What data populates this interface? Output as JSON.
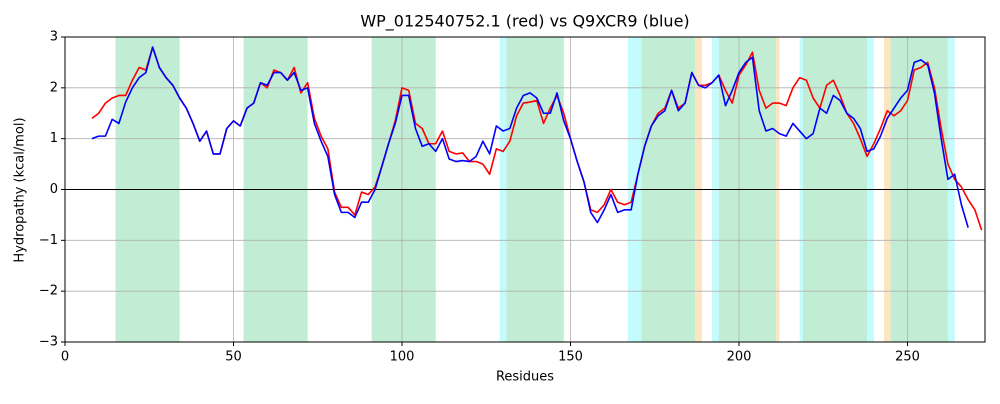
{
  "chart_data": {
    "type": "line",
    "title": "WP_012540752.1 (red) vs Q9XCR9 (blue)",
    "x_label": "Residues",
    "y_label": "Hydropathy (kcal/mol)",
    "xlim": [
      0,
      273
    ],
    "ylim": [
      -3,
      3
    ],
    "xticks": [
      0,
      50,
      100,
      150,
      200,
      250
    ],
    "yticks": [
      {
        "value": -3,
        "label": "−3"
      },
      {
        "value": -2,
        "label": "−2"
      },
      {
        "value": -1,
        "label": "−1"
      },
      0,
      1,
      2,
      3
    ],
    "grid": true,
    "zero_line": true,
    "regions": [
      {
        "start": 15,
        "end": 34,
        "color": "#c0edd3"
      },
      {
        "start": 53,
        "end": 72,
        "color": "#c0edd3"
      },
      {
        "start": 91,
        "end": 110,
        "color": "#c0edd3"
      },
      {
        "start": 129,
        "end": 131,
        "color": "#c4fbfd"
      },
      {
        "start": 131,
        "end": 148,
        "color": "#c0edd3"
      },
      {
        "start": 167,
        "end": 171,
        "color": "#c4fbfd"
      },
      {
        "start": 171,
        "end": 187,
        "color": "#c0edd3"
      },
      {
        "start": 187,
        "end": 189,
        "color": "#fde5c2"
      },
      {
        "start": 192,
        "end": 194,
        "color": "#c4fbfd"
      },
      {
        "start": 194,
        "end": 211,
        "color": "#c0edd3"
      },
      {
        "start": 211,
        "end": 212,
        "color": "#fde5c2"
      },
      {
        "start": 218,
        "end": 219,
        "color": "#c4fbfd"
      },
      {
        "start": 219,
        "end": 238,
        "color": "#c0edd3"
      },
      {
        "start": 238,
        "end": 240,
        "color": "#c4fbfd"
      },
      {
        "start": 243,
        "end": 245,
        "color": "#fde5c2"
      },
      {
        "start": 245,
        "end": 262,
        "color": "#c0edd3"
      },
      {
        "start": 262,
        "end": 264,
        "color": "#c4fbfd"
      }
    ],
    "x": [
      8,
      10,
      12,
      14,
      16,
      18,
      20,
      22,
      24,
      26,
      28,
      30,
      32,
      34,
      36,
      38,
      40,
      42,
      44,
      46,
      48,
      50,
      52,
      54,
      56,
      58,
      60,
      62,
      64,
      66,
      68,
      70,
      72,
      74,
      76,
      78,
      80,
      82,
      84,
      86,
      88,
      90,
      92,
      94,
      96,
      98,
      100,
      102,
      104,
      106,
      108,
      110,
      112,
      114,
      116,
      118,
      120,
      122,
      124,
      126,
      128,
      130,
      132,
      134,
      136,
      138,
      140,
      142,
      144,
      146,
      148,
      150,
      152,
      154,
      156,
      158,
      160,
      162,
      164,
      166,
      168,
      170,
      172,
      174,
      176,
      178,
      180,
      182,
      184,
      186,
      188,
      190,
      192,
      194,
      196,
      198,
      200,
      202,
      204,
      206,
      208,
      210,
      212,
      214,
      216,
      218,
      220,
      222,
      224,
      226,
      228,
      230,
      232,
      234,
      236,
      238,
      240,
      242,
      244,
      246,
      248,
      250,
      252,
      254,
      256,
      258,
      260,
      262,
      264,
      266,
      268,
      270,
      272
    ],
    "series": [
      {
        "color": "#ff0000",
        "values": [
          1.4,
          1.5,
          1.7,
          1.8,
          1.85,
          1.85,
          2.15,
          2.4,
          2.35,
          2.8,
          2.4,
          2.2,
          2.05,
          1.8,
          1.6,
          1.3,
          0.95,
          1.15,
          0.7,
          0.7,
          1.2,
          1.35,
          1.25,
          1.6,
          1.7,
          2.1,
          2.0,
          2.35,
          2.3,
          2.15,
          2.4,
          1.9,
          2.1,
          1.4,
          1.05,
          0.8,
          -0.05,
          -0.35,
          -0.35,
          -0.5,
          -0.05,
          -0.1,
          0.05,
          0.45,
          0.9,
          1.35,
          2.0,
          1.95,
          1.3,
          1.2,
          0.9,
          0.9,
          1.15,
          0.75,
          0.7,
          0.72,
          0.55,
          0.55,
          0.5,
          0.3,
          0.8,
          0.75,
          0.95,
          1.45,
          1.7,
          1.72,
          1.75,
          1.3,
          1.6,
          1.85,
          1.5,
          1.0,
          0.55,
          0.15,
          -0.4,
          -0.45,
          -0.3,
          0.0,
          -0.25,
          -0.3,
          -0.25,
          0.3,
          0.85,
          1.25,
          1.5,
          1.6,
          1.95,
          1.6,
          1.7,
          2.3,
          2.05,
          2.05,
          2.1,
          2.25,
          1.95,
          1.7,
          2.25,
          2.45,
          2.7,
          1.95,
          1.6,
          1.7,
          1.7,
          1.65,
          2.0,
          2.2,
          2.15,
          1.8,
          1.6,
          2.05,
          2.15,
          1.85,
          1.5,
          1.3,
          1.0,
          0.65,
          0.9,
          1.2,
          1.55,
          1.45,
          1.55,
          1.75,
          2.35,
          2.4,
          2.5,
          2.0,
          1.2,
          0.5,
          0.2,
          0.05,
          -0.2,
          -0.4,
          -0.8
        ]
      },
      {
        "color": "#0000ff",
        "values": [
          1.0,
          1.05,
          1.05,
          1.38,
          1.3,
          1.72,
          2.0,
          2.2,
          2.3,
          2.8,
          2.4,
          2.2,
          2.05,
          1.8,
          1.6,
          1.3,
          0.95,
          1.15,
          0.7,
          0.7,
          1.2,
          1.35,
          1.25,
          1.6,
          1.7,
          2.1,
          2.05,
          2.3,
          2.3,
          2.15,
          2.3,
          1.95,
          2.0,
          1.3,
          0.95,
          0.65,
          -0.1,
          -0.45,
          -0.45,
          -0.55,
          -0.25,
          -0.25,
          0.0,
          0.45,
          0.9,
          1.3,
          1.85,
          1.85,
          1.2,
          0.85,
          0.9,
          0.75,
          1.0,
          0.6,
          0.55,
          0.57,
          0.55,
          0.65,
          0.95,
          0.7,
          1.25,
          1.15,
          1.2,
          1.6,
          1.85,
          1.9,
          1.8,
          1.5,
          1.5,
          1.9,
          1.35,
          1.0,
          0.55,
          0.15,
          -0.45,
          -0.65,
          -0.4,
          -0.1,
          -0.45,
          -0.4,
          -0.4,
          0.3,
          0.85,
          1.25,
          1.45,
          1.55,
          1.95,
          1.55,
          1.7,
          2.3,
          2.05,
          2.0,
          2.1,
          2.25,
          1.65,
          1.95,
          2.3,
          2.5,
          2.6,
          1.55,
          1.15,
          1.2,
          1.1,
          1.05,
          1.3,
          1.15,
          1.0,
          1.1,
          1.6,
          1.5,
          1.85,
          1.75,
          1.5,
          1.4,
          1.2,
          0.75,
          0.8,
          1.05,
          1.4,
          1.6,
          1.8,
          1.95,
          2.5,
          2.55,
          2.45,
          1.9,
          1.0,
          0.2,
          0.3,
          -0.3,
          -0.75,
          null,
          null
        ]
      }
    ]
  }
}
